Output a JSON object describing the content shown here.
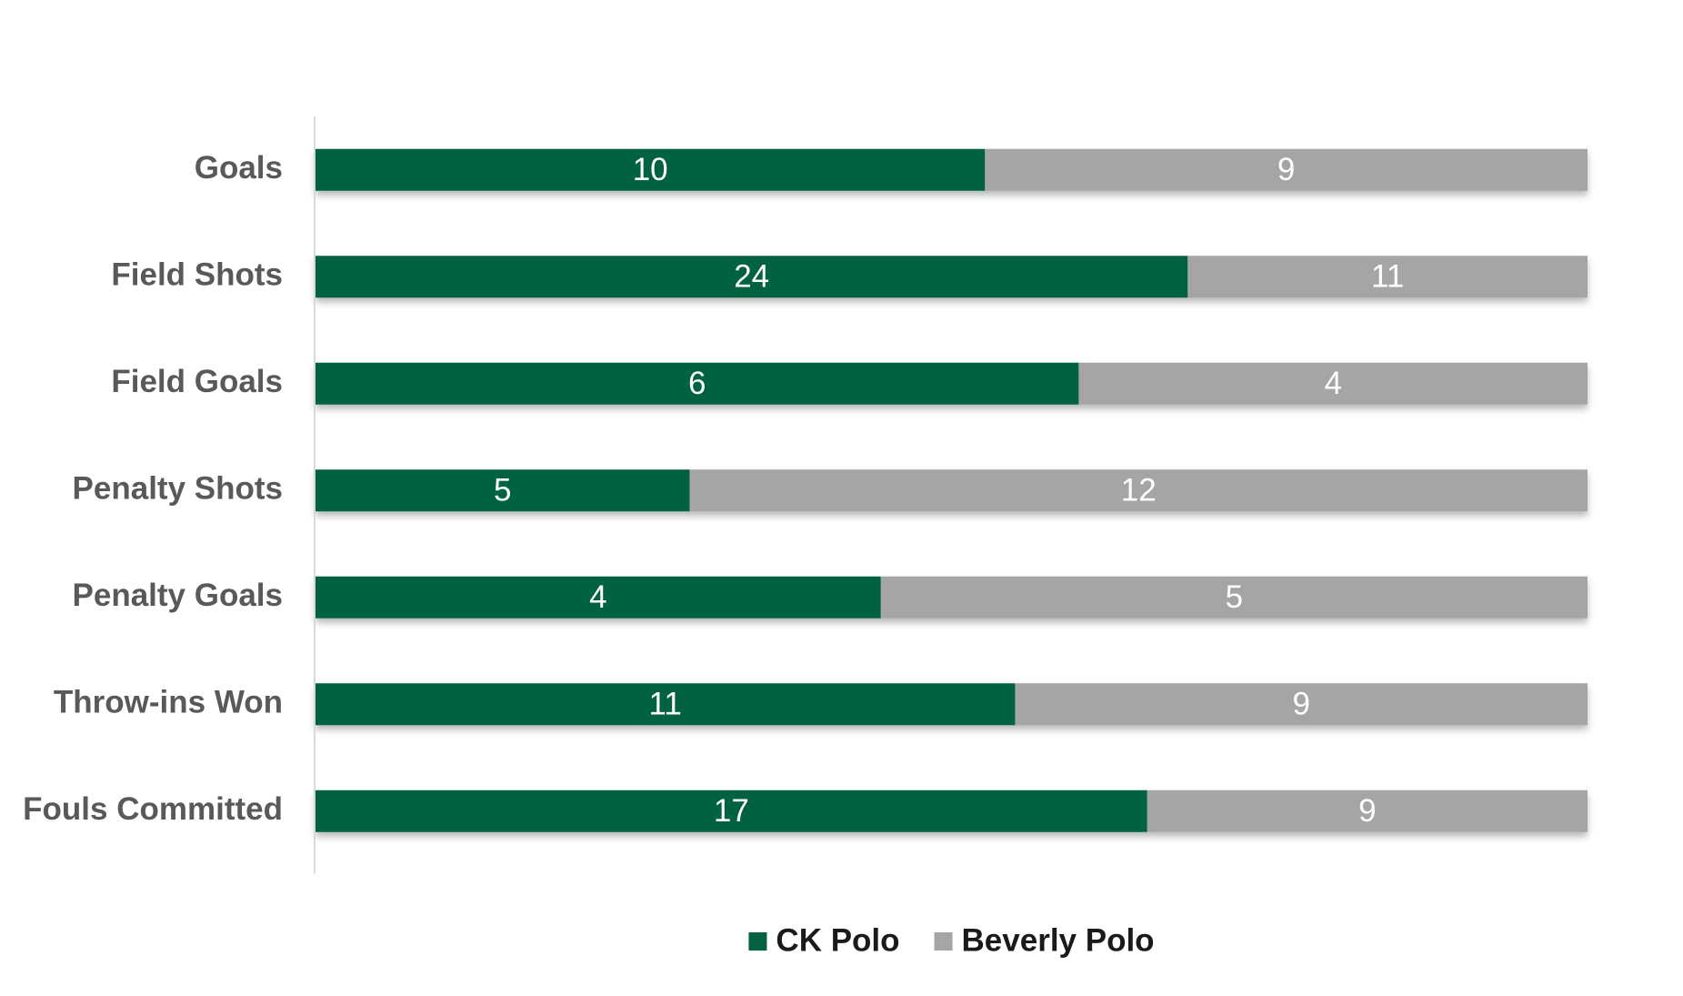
{
  "chart_data": {
    "type": "bar",
    "orientation": "horizontal",
    "stacked": "percent",
    "title": "",
    "xlabel": "",
    "ylabel": "",
    "categories": [
      "Goals",
      "Field Shots",
      "Field Goals",
      "Penalty Shots",
      "Penalty Goals",
      "Throw-ins Won",
      "Fouls Committed"
    ],
    "series": [
      {
        "name": "CK Polo",
        "color": "#046241",
        "values": [
          10,
          24,
          6,
          5,
          4,
          11,
          17
        ]
      },
      {
        "name": "Beverly Polo",
        "color": "#a5a5a5",
        "values": [
          9,
          11,
          4,
          12,
          5,
          9,
          9
        ]
      }
    ],
    "data_labels": true,
    "grid": false,
    "legend": "bottom-center"
  }
}
